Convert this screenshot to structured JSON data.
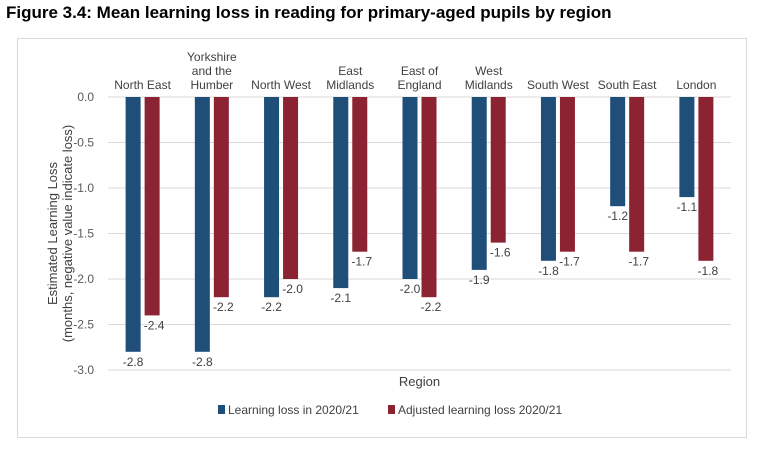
{
  "figure_title": "Figure 3.4: Mean learning loss in reading for primary-aged pupils by region",
  "chart_data": {
    "type": "bar",
    "title": "",
    "xlabel": "Region",
    "ylabel": [
      "Estimated Learning Loss",
      "(months, negative value indicate loss)"
    ],
    "ylim": [
      -3.0,
      0.0
    ],
    "yticks": [
      "0.0",
      "-0.5",
      "-1.0",
      "-1.5",
      "-2.0",
      "-2.5",
      "-3.0"
    ],
    "ytick_values": [
      0.0,
      -0.5,
      -1.0,
      -1.5,
      -2.0,
      -2.5,
      -3.0
    ],
    "grid": "horizontal",
    "legend_position": "bottom",
    "categories": [
      [
        "North East"
      ],
      [
        "Yorkshire",
        "and the",
        "Humber"
      ],
      [
        "North West"
      ],
      [
        "East",
        "Midlands"
      ],
      [
        "East of",
        "England"
      ],
      [
        "West",
        "Midlands"
      ],
      [
        "South West"
      ],
      [
        "South East"
      ],
      [
        "London"
      ]
    ],
    "series": [
      {
        "name": "Learning loss in 2020/21",
        "color": "#1f4e79",
        "values": [
          -2.8,
          -2.8,
          -2.2,
          -2.1,
          -2.0,
          -1.9,
          -1.8,
          -1.2,
          -1.1
        ],
        "labels": [
          "-2.8",
          "-2.8",
          "-2.2",
          "-2.1",
          "-2.0",
          "-1.9",
          "-1.8",
          "-1.2",
          "-1.1"
        ]
      },
      {
        "name": "Adjusted learning loss 2020/21",
        "color": "#8b2332",
        "values": [
          -2.4,
          -2.2,
          -2.0,
          -1.7,
          -2.2,
          -1.6,
          -1.7,
          -1.7,
          -1.8
        ],
        "labels": [
          "-2.4",
          "-2.2",
          "-2.0",
          "-1.7",
          "-2.2",
          "-1.6",
          "-1.7",
          "-1.7",
          "-1.8"
        ]
      }
    ]
  }
}
